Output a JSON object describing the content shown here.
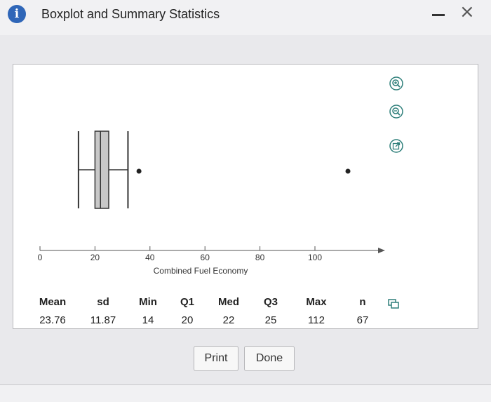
{
  "window": {
    "title": "Boxplot and Summary Statistics",
    "info_glyph": "i",
    "close_glyph": "×"
  },
  "toolbar": {
    "icons": [
      "zoom-in-icon",
      "zoom-out-icon",
      "open-in-new-window-icon"
    ]
  },
  "chart_data": {
    "type": "boxplot",
    "orientation": "horizontal",
    "xlabel": "Combined Fuel Economy",
    "xlim": [
      0,
      120
    ],
    "ticks": [
      0,
      20,
      40,
      60,
      80,
      100
    ],
    "tick_labels": [
      "0",
      "20",
      "40",
      "60",
      "80",
      "100"
    ],
    "min_whisker": 14,
    "q1": 20,
    "median": 22,
    "q3": 25,
    "max_whisker": 32,
    "outliers": [
      36,
      112
    ],
    "box_color": "#c8c8c8"
  },
  "stats": {
    "headers": [
      "Mean",
      "sd",
      "Min",
      "Q1",
      "Med",
      "Q3",
      "Max",
      "n"
    ],
    "values": [
      "23.76",
      "11.87",
      "14",
      "20",
      "22",
      "25",
      "112",
      "67"
    ]
  },
  "buttons": {
    "print": "Print",
    "done": "Done"
  },
  "colors": {
    "accent": "#2f66b8",
    "icon_teal": "#2e7f7a"
  }
}
